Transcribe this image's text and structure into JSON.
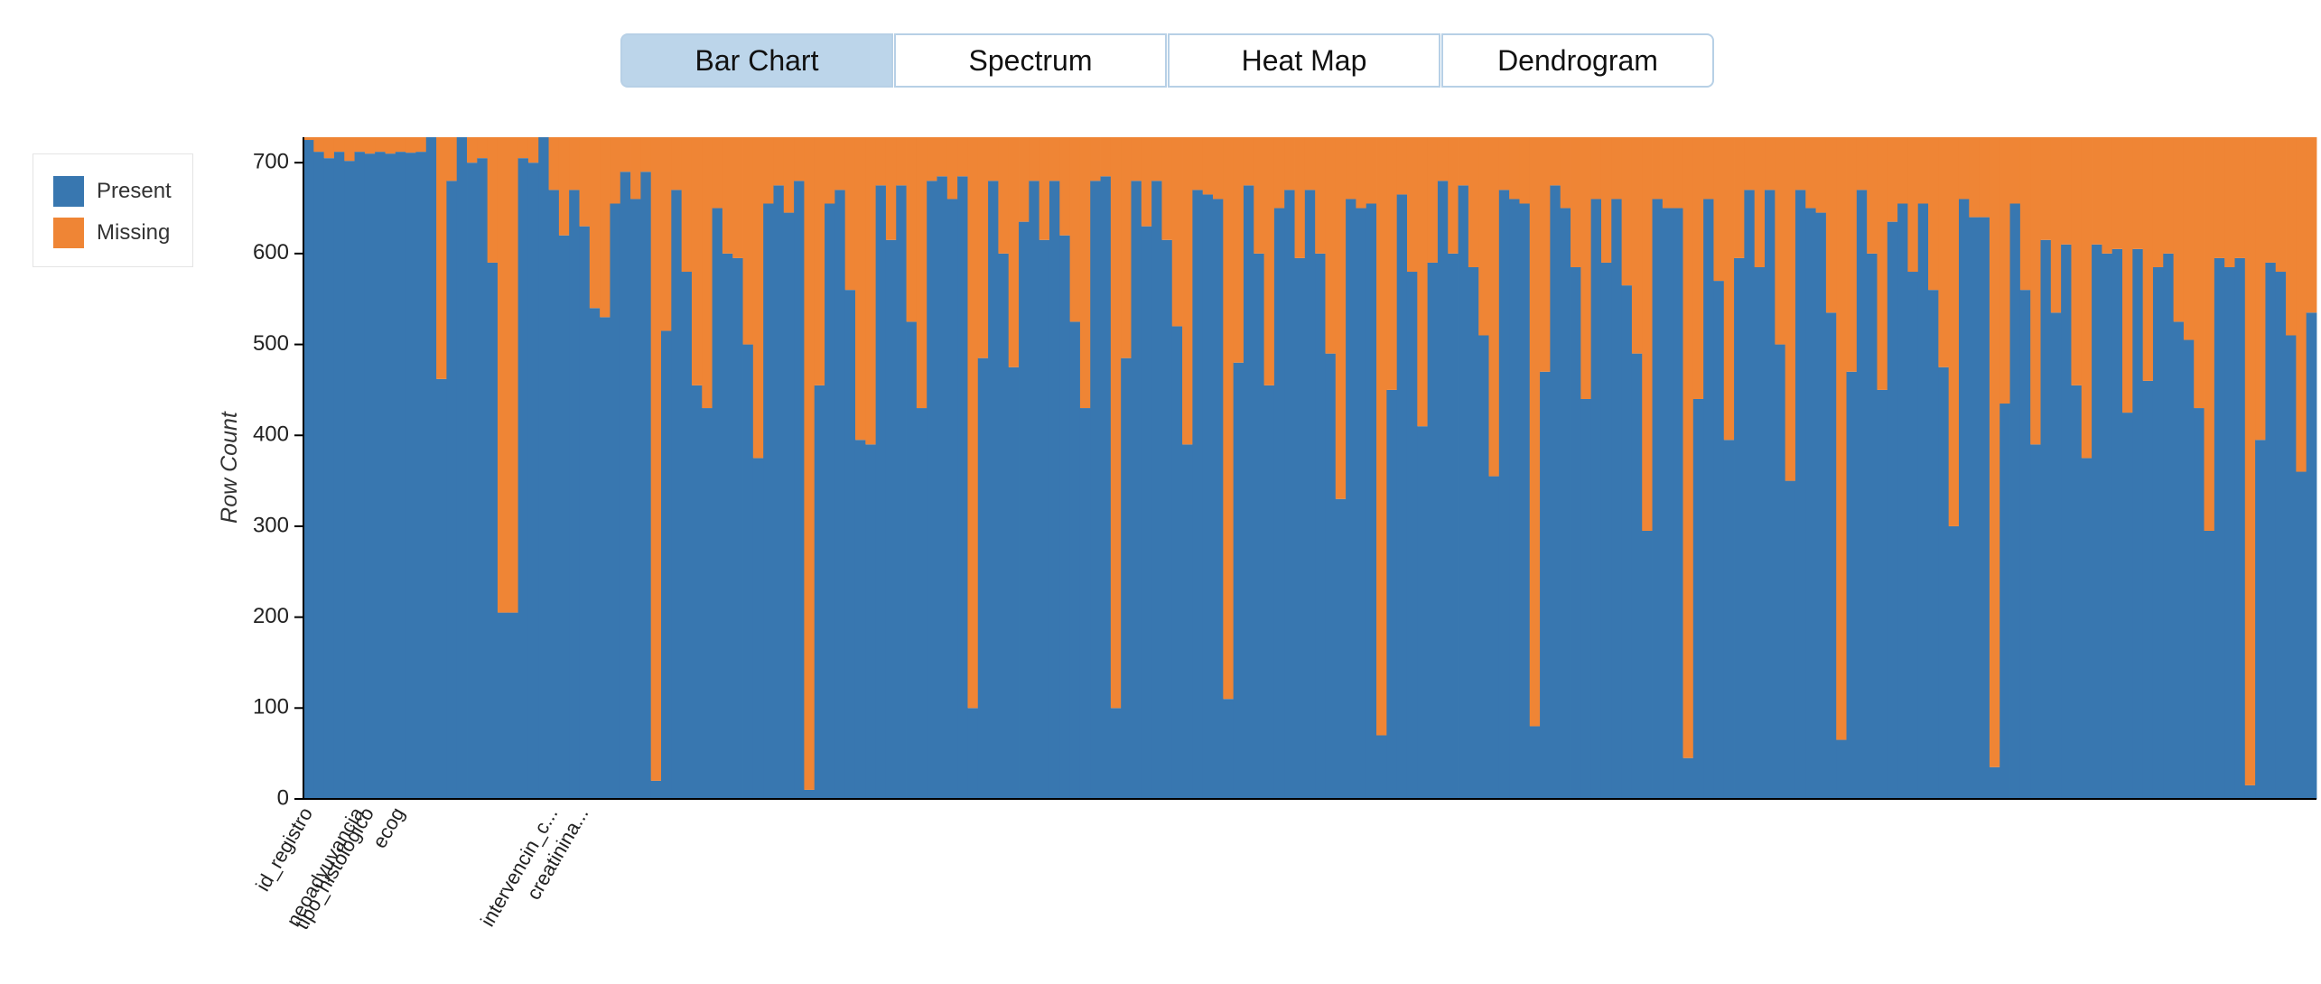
{
  "tabs": [
    "Bar Chart",
    "Spectrum",
    "Heat Map",
    "Dendrogram"
  ],
  "chart_data": {
    "type": "stacked_bar",
    "y_label": "Row Count",
    "ylim": [
      0,
      728
    ],
    "yticks": [
      0,
      100,
      200,
      300,
      400,
      500,
      600,
      700
    ],
    "categories": [
      "id_registro",
      null,
      null,
      null,
      null,
      "neoadyuvancia",
      "tipo_histologico",
      null,
      null,
      "ecog",
      null,
      null,
      null,
      null,
      null,
      null,
      null,
      null,
      null,
      null,
      null,
      null,
      null,
      null,
      "intervencin_c...",
      null,
      null,
      "creatinina...",
      null,
      null,
      null,
      null,
      null,
      null,
      null,
      null,
      null,
      null,
      null,
      null,
      null,
      null,
      null,
      null,
      null,
      null,
      null,
      null,
      null,
      null,
      null,
      null,
      null,
      null,
      null,
      null,
      null,
      null,
      null,
      null,
      null,
      null,
      null,
      null,
      null,
      null,
      null,
      null,
      null,
      null,
      null,
      null,
      null,
      null,
      null,
      null,
      null,
      null,
      null,
      null,
      null,
      null,
      null,
      null,
      null,
      null,
      null,
      null,
      null,
      null,
      null,
      null,
      null,
      null,
      null,
      null,
      null,
      null,
      null,
      null,
      null,
      null,
      null,
      null,
      null,
      null,
      null,
      null,
      null,
      null,
      null,
      null,
      null,
      null,
      null,
      null,
      null,
      null,
      null,
      null,
      null,
      null,
      null,
      null,
      null,
      null,
      null,
      null,
      null,
      null,
      null,
      null,
      null,
      null,
      null,
      null,
      null,
      null,
      null,
      null,
      null,
      null,
      null,
      null,
      null,
      null,
      null,
      null,
      null,
      null,
      null,
      null,
      null,
      null,
      null,
      null,
      null,
      null,
      null,
      null,
      null,
      null,
      null,
      null,
      null,
      null,
      null,
      null,
      null,
      null,
      null,
      null,
      null,
      null,
      null,
      null,
      null,
      null,
      null,
      null,
      null,
      null,
      null,
      null,
      null,
      null,
      null,
      null,
      null,
      null,
      null,
      null,
      null,
      null,
      null,
      null,
      null
    ],
    "series": [
      {
        "name": "Present",
        "color": "#3877b0",
        "values": [
          725,
          712,
          705,
          712,
          702,
          712,
          710,
          712,
          710,
          712,
          711,
          712,
          728,
          462,
          680,
          728,
          700,
          705,
          590,
          205,
          205,
          705,
          700,
          728,
          670,
          620,
          670,
          630,
          540,
          530,
          655,
          690,
          660,
          690,
          20,
          515,
          670,
          580,
          455,
          430,
          650,
          600,
          595,
          500,
          375,
          655,
          675,
          645,
          680,
          10,
          455,
          655,
          670,
          560,
          395,
          390,
          675,
          615,
          675,
          525,
          430,
          680,
          685,
          660,
          685,
          100,
          485,
          680,
          600,
          475,
          635,
          680,
          615,
          680,
          620,
          525,
          430,
          680,
          685,
          100,
          485,
          680,
          630,
          680,
          615,
          520,
          390,
          670,
          665,
          660,
          110,
          480,
          675,
          600,
          455,
          650,
          670,
          595,
          670,
          600,
          490,
          330,
          660,
          650,
          655,
          70,
          450,
          665,
          580,
          410,
          590,
          680,
          600,
          675,
          585,
          510,
          355,
          670,
          660,
          655,
          80,
          470,
          675,
          650,
          585,
          440,
          660,
          590,
          660,
          565,
          490,
          295,
          660,
          650,
          650,
          45,
          440,
          660,
          570,
          395,
          595,
          670,
          585,
          670,
          500,
          350,
          670,
          650,
          645,
          535,
          65,
          470,
          670,
          600,
          450,
          635,
          655,
          580,
          655,
          560,
          475,
          300,
          660,
          640,
          640,
          35,
          435,
          655,
          560,
          390,
          615,
          535,
          610,
          455,
          375,
          610,
          600,
          605,
          425,
          605,
          460,
          585,
          600,
          525,
          505,
          430,
          295,
          595,
          585,
          595,
          15,
          395,
          590,
          580,
          510,
          360,
          535
        ]
      },
      {
        "name": "Missing",
        "color": "#ef8535",
        "values": [
          3,
          16,
          23,
          16,
          26,
          16,
          18,
          16,
          18,
          16,
          17,
          16,
          0,
          266,
          48,
          0,
          28,
          23,
          138,
          523,
          523,
          23,
          28,
          0,
          58,
          108,
          58,
          98,
          188,
          198,
          73,
          38,
          68,
          38,
          708,
          213,
          58,
          148,
          273,
          298,
          78,
          128,
          133,
          228,
          353,
          73,
          53,
          83,
          48,
          718,
          273,
          73,
          58,
          168,
          333,
          338,
          53,
          113,
          53,
          203,
          298,
          48,
          43,
          68,
          43,
          628,
          243,
          48,
          128,
          253,
          93,
          48,
          113,
          48,
          108,
          203,
          298,
          48,
          43,
          628,
          243,
          48,
          98,
          48,
          113,
          208,
          338,
          58,
          63,
          68,
          618,
          248,
          53,
          128,
          273,
          78,
          58,
          133,
          58,
          128,
          238,
          398,
          68,
          78,
          73,
          658,
          278,
          63,
          148,
          318,
          138,
          48,
          128,
          53,
          143,
          218,
          373,
          58,
          68,
          73,
          648,
          258,
          53,
          78,
          143,
          288,
          68,
          138,
          68,
          163,
          238,
          433,
          68,
          78,
          78,
          683,
          288,
          68,
          158,
          333,
          133,
          58,
          143,
          58,
          228,
          378,
          58,
          78,
          83,
          193,
          663,
          258,
          58,
          128,
          278,
          93,
          73,
          148,
          73,
          168,
          253,
          428,
          68,
          88,
          88,
          693,
          293,
          73,
          168,
          338,
          113,
          193,
          118,
          273,
          353,
          118,
          128,
          123,
          303,
          123,
          268,
          143,
          128,
          203,
          223,
          298,
          433,
          133,
          143,
          133,
          713,
          333,
          138,
          148,
          218,
          368,
          193
        ]
      }
    ]
  }
}
